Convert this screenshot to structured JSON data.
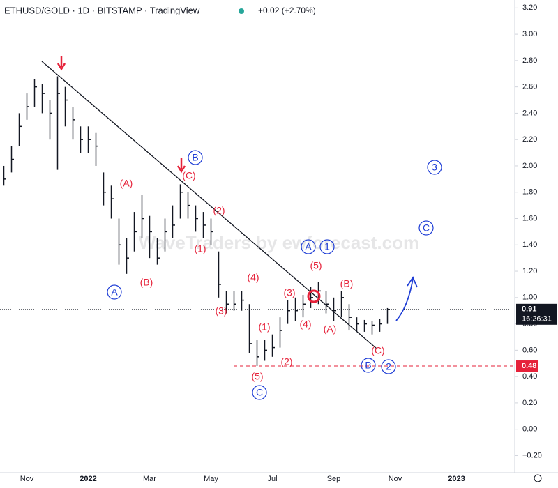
{
  "chart_data": {
    "type": "hlc",
    "title": "ETHUSD/GOLD · 1D · BITSTAMP · TradingView",
    "change": "+0.02 (+2.70%)",
    "watermark": "WaveTraders by ewforecast.com",
    "categories": [
      null,
      null,
      null,
      "Nov",
      null,
      null,
      null,
      null,
      null,
      null,
      null,
      "2022",
      null,
      null,
      null,
      null,
      null,
      null,
      null,
      "Mar",
      null,
      null,
      null,
      null,
      null,
      null,
      null,
      "May",
      null,
      null,
      null,
      null,
      null,
      null,
      null,
      "Jul",
      null,
      null,
      null,
      null,
      null,
      null,
      null,
      "Sep",
      null,
      null,
      null,
      null,
      null,
      null,
      null,
      "Nov",
      null,
      null,
      null,
      null,
      null,
      null,
      null,
      "2023",
      null,
      null,
      null,
      null,
      null,
      null,
      null
    ],
    "high": [
      2.0,
      2.15,
      2.4,
      2.55,
      2.66,
      2.62,
      2.5,
      2.68,
      2.6,
      2.45,
      2.3,
      2.3,
      2.25,
      1.95,
      1.85,
      1.6,
      1.45,
      1.65,
      1.78,
      1.62,
      1.45,
      1.6,
      1.7,
      1.86,
      1.8,
      1.7,
      1.65,
      1.6,
      1.35,
      1.05,
      1.05,
      1.05,
      0.95,
      0.68,
      0.68,
      0.72,
      0.85,
      0.98,
      1.0,
      1.02,
      1.08,
      1.12,
      1.05,
      1.0,
      1.05,
      0.95,
      0.85,
      0.83,
      0.82,
      0.84,
      0.92,
      null,
      null,
      null,
      null,
      null,
      null,
      null,
      null,
      null,
      null,
      null,
      null,
      null,
      null,
      null,
      null
    ],
    "low": [
      1.85,
      1.95,
      2.15,
      2.35,
      2.45,
      2.4,
      2.2,
      1.97,
      2.3,
      2.2,
      2.1,
      2.1,
      2.0,
      1.7,
      1.6,
      1.25,
      1.18,
      1.35,
      1.45,
      1.3,
      1.25,
      1.35,
      1.45,
      1.6,
      1.6,
      1.5,
      1.45,
      1.4,
      1.0,
      0.88,
      0.9,
      0.9,
      0.58,
      0.48,
      0.52,
      0.55,
      0.62,
      0.8,
      0.82,
      0.85,
      0.92,
      0.95,
      0.88,
      0.82,
      0.85,
      0.75,
      0.74,
      0.74,
      0.72,
      0.74,
      0.8,
      null,
      null,
      null,
      null,
      null,
      null,
      null,
      null,
      null,
      null,
      null,
      null,
      null,
      null,
      null,
      null
    ],
    "close": [
      1.9,
      2.05,
      2.3,
      2.45,
      2.6,
      2.55,
      2.4,
      2.55,
      2.5,
      2.35,
      2.2,
      2.2,
      2.15,
      1.8,
      1.75,
      1.4,
      1.3,
      1.5,
      1.6,
      1.5,
      1.3,
      1.5,
      1.55,
      1.8,
      1.7,
      1.6,
      1.55,
      1.5,
      1.1,
      0.95,
      0.95,
      0.98,
      0.65,
      0.55,
      0.6,
      0.62,
      0.75,
      0.9,
      0.9,
      0.95,
      1.0,
      1.05,
      0.95,
      0.9,
      1.0,
      0.85,
      0.8,
      0.8,
      0.79,
      0.8,
      0.91,
      null,
      null,
      null,
      null,
      null,
      null,
      null,
      null,
      null,
      null,
      null,
      null,
      null,
      null,
      null,
      null
    ],
    "color": "#131722",
    "ylim": [
      -0.33,
      3.26
    ],
    "yticks": [
      {
        "value": 3.2,
        "label": "3.20"
      },
      {
        "value": 3.0,
        "label": "3.00"
      },
      {
        "value": 2.8,
        "label": "2.80"
      },
      {
        "value": 2.6,
        "label": "2.60"
      },
      {
        "value": 2.4,
        "label": "2.40"
      },
      {
        "value": 2.2,
        "label": "2.20"
      },
      {
        "value": 2.0,
        "label": "2.00"
      },
      {
        "value": 1.8,
        "label": "1.80"
      },
      {
        "value": 1.6,
        "label": "1.60"
      },
      {
        "value": 1.4,
        "label": "1.40"
      },
      {
        "value": 1.2,
        "label": "1.20"
      },
      {
        "value": 1.0,
        "label": "1.00"
      },
      {
        "value": 0.8,
        "label": "0.80"
      },
      {
        "value": 0.6,
        "label": "0.60"
      },
      {
        "value": 0.4,
        "label": "0.40"
      },
      {
        "value": 0.2,
        "label": "0.20"
      },
      {
        "value": 0.0,
        "label": "0.00"
      },
      {
        "value": -0.2,
        "label": "−0.20"
      }
    ],
    "last_price": 0.91,
    "countdown": "16:26:31",
    "level": 0.48,
    "annotations": [
      "(A)",
      "(B)",
      "(C)",
      "(1)",
      "(2)",
      "(3)",
      "(4)",
      "(5)",
      "(1)",
      "(2)",
      "(3)",
      "(4)",
      "(5)",
      "(A)",
      "(B)",
      "(C)",
      "A",
      "B",
      "C",
      "A",
      "1",
      "B",
      "2",
      "3",
      "C"
    ]
  }
}
